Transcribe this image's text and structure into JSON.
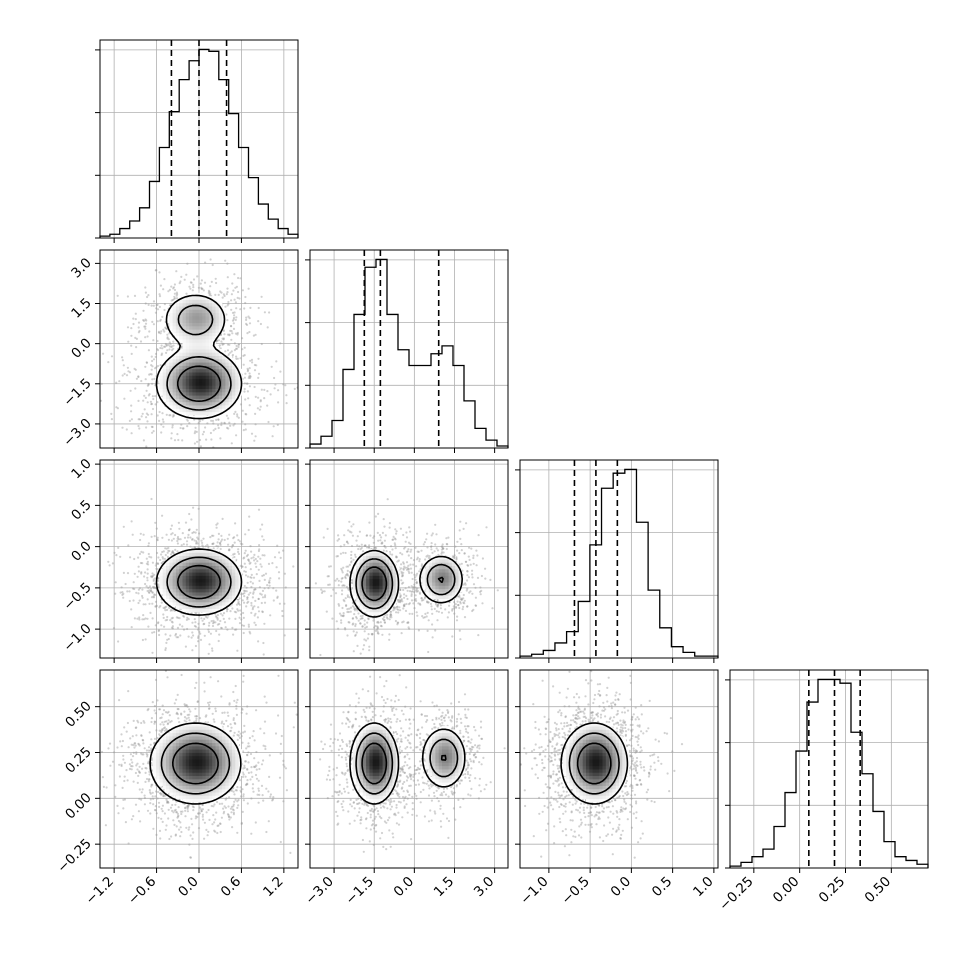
{
  "chart_data": {
    "type": "corner",
    "variables": [
      {
        "range": [
          -1.4,
          1.4
        ],
        "ticks": [
          -1.2,
          -0.6,
          0.0,
          0.6,
          1.2
        ],
        "tick_labels": [
          "−1.2",
          "−0.6",
          "0.0",
          "0.6",
          "1.2"
        ],
        "quantiles": [
          -0.39,
          0.0,
          0.39
        ]
      },
      {
        "range": [
          -3.9,
          3.5
        ],
        "ticks": [
          -3.0,
          -1.5,
          0.0,
          1.5,
          3.0
        ],
        "tick_labels": [
          "−3.0",
          "−1.5",
          "0.0",
          "1.5",
          "3.0"
        ],
        "quantiles": [
          -1.87,
          -1.27,
          0.91
        ]
      },
      {
        "range": [
          -1.35,
          1.05
        ],
        "ticks": [
          -1.0,
          -0.5,
          0.0,
          0.5,
          1.0
        ],
        "tick_labels": [
          "−1.0",
          "−0.5",
          "0.0",
          "0.5",
          "1.0"
        ],
        "quantiles": [
          -0.69,
          -0.43,
          -0.17
        ]
      },
      {
        "range": [
          -0.38,
          0.7
        ],
        "ticks": [
          -0.25,
          0.0,
          0.25,
          0.5
        ],
        "tick_labels": [
          "−0.25",
          "0.00",
          "0.25",
          "0.50"
        ],
        "quantiles": [
          0.05,
          0.19,
          0.33
        ]
      }
    ],
    "histograms": [
      {
        "variable": 0,
        "bins": [
          -1.4,
          1.4
        ],
        "counts": [
          1,
          2,
          5,
          9,
          16,
          30,
          48,
          67,
          84,
          94,
          100,
          99,
          84,
          66,
          48,
          32,
          18,
          10,
          5,
          2
        ]
      },
      {
        "variable": 1,
        "bins": [
          -3.9,
          3.5
        ],
        "counts": [
          2,
          6,
          14,
          40,
          68,
          92,
          96,
          68,
          50,
          42,
          42,
          48,
          52,
          42,
          24,
          10,
          4,
          1
        ]
      },
      {
        "variable": 2,
        "bins": [
          -1.35,
          1.05
        ],
        "counts": [
          1,
          2,
          4,
          8,
          14,
          30,
          60,
          90,
          98,
          100,
          72,
          36,
          16,
          6,
          3,
          1,
          1
        ]
      },
      {
        "variable": 3,
        "bins": [
          -0.38,
          0.7
        ],
        "counts": [
          1,
          3,
          6,
          10,
          22,
          40,
          62,
          88,
          100,
          100,
          98,
          72,
          50,
          30,
          14,
          6,
          4,
          2
        ]
      }
    ],
    "pairs": [
      {
        "x": 0,
        "y": 1,
        "modes": [
          {
            "x": 0.0,
            "y": -1.5,
            "sx": 0.3,
            "sy": 0.65,
            "w": 0.66
          },
          {
            "x": -0.05,
            "y": 0.9,
            "sx": 0.25,
            "sy": 0.55,
            "w": 0.34
          }
        ],
        "contour_levels": [
          0.87,
          1.4,
          2.0
        ],
        "noise": [
          0.42,
          0.9
        ]
      },
      {
        "x": 0,
        "y": 2,
        "modes": [
          {
            "x": 0.0,
            "y": -0.43,
            "sx": 0.3,
            "sy": 0.2,
            "w": 1.0
          }
        ],
        "contour_levels": [
          0.9,
          1.55,
          2.15
        ],
        "noise": [
          0.45,
          0.35
        ]
      },
      {
        "x": 1,
        "y": 2,
        "modes": [
          {
            "x": -1.5,
            "y": -0.45,
            "sx": 0.45,
            "sy": 0.2,
            "w": 0.62
          },
          {
            "x": 1.0,
            "y": -0.4,
            "sx": 0.45,
            "sy": 0.16,
            "w": 0.38
          }
        ],
        "contour_levels": [
          0.9,
          1.5,
          2.1
        ],
        "noise": [
          1.1,
          0.32
        ]
      },
      {
        "x": 0,
        "y": 3,
        "modes": [
          {
            "x": -0.05,
            "y": 0.19,
            "sx": 0.32,
            "sy": 0.11,
            "w": 1.0
          }
        ],
        "contour_levels": [
          0.9,
          1.55,
          2.15
        ],
        "noise": [
          0.45,
          0.16
        ]
      },
      {
        "x": 1,
        "y": 3,
        "modes": [
          {
            "x": -1.5,
            "y": 0.19,
            "sx": 0.45,
            "sy": 0.11,
            "w": 0.62
          },
          {
            "x": 1.1,
            "y": 0.22,
            "sx": 0.45,
            "sy": 0.09,
            "w": 0.38
          }
        ],
        "contour_levels": [
          0.9,
          1.5,
          2.1
        ],
        "noise": [
          1.1,
          0.16
        ]
      },
      {
        "x": 2,
        "y": 3,
        "modes": [
          {
            "x": -0.45,
            "y": 0.19,
            "sx": 0.2,
            "sy": 0.11,
            "w": 1.0
          }
        ],
        "contour_levels": [
          0.9,
          1.55,
          2.15
        ],
        "noise": [
          0.32,
          0.16
        ]
      }
    ],
    "grid": true,
    "quantile_line_style": "dashed",
    "colors": {
      "line": "#000000",
      "grid": "#b0b0b0",
      "scatter": "#9a9a9a"
    }
  }
}
